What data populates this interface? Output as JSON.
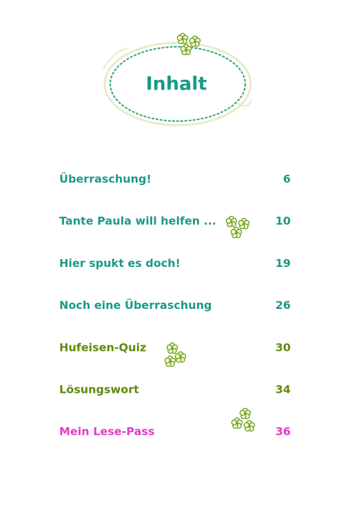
{
  "header": {
    "title": "Inhalt"
  },
  "entries": [
    {
      "title": "Überraschung!",
      "page": "6"
    },
    {
      "title": "Tante Paula will helfen ...",
      "page": "10"
    },
    {
      "title": "Hier spukt es doch!",
      "page": "19"
    },
    {
      "title": "Noch eine Überraschung",
      "page": "26"
    },
    {
      "title": "Hufeisen-Quiz",
      "page": "30"
    },
    {
      "title": "Lösungswort",
      "page": "34"
    },
    {
      "title": "Mein Lese-Pass",
      "page": "36"
    }
  ]
}
